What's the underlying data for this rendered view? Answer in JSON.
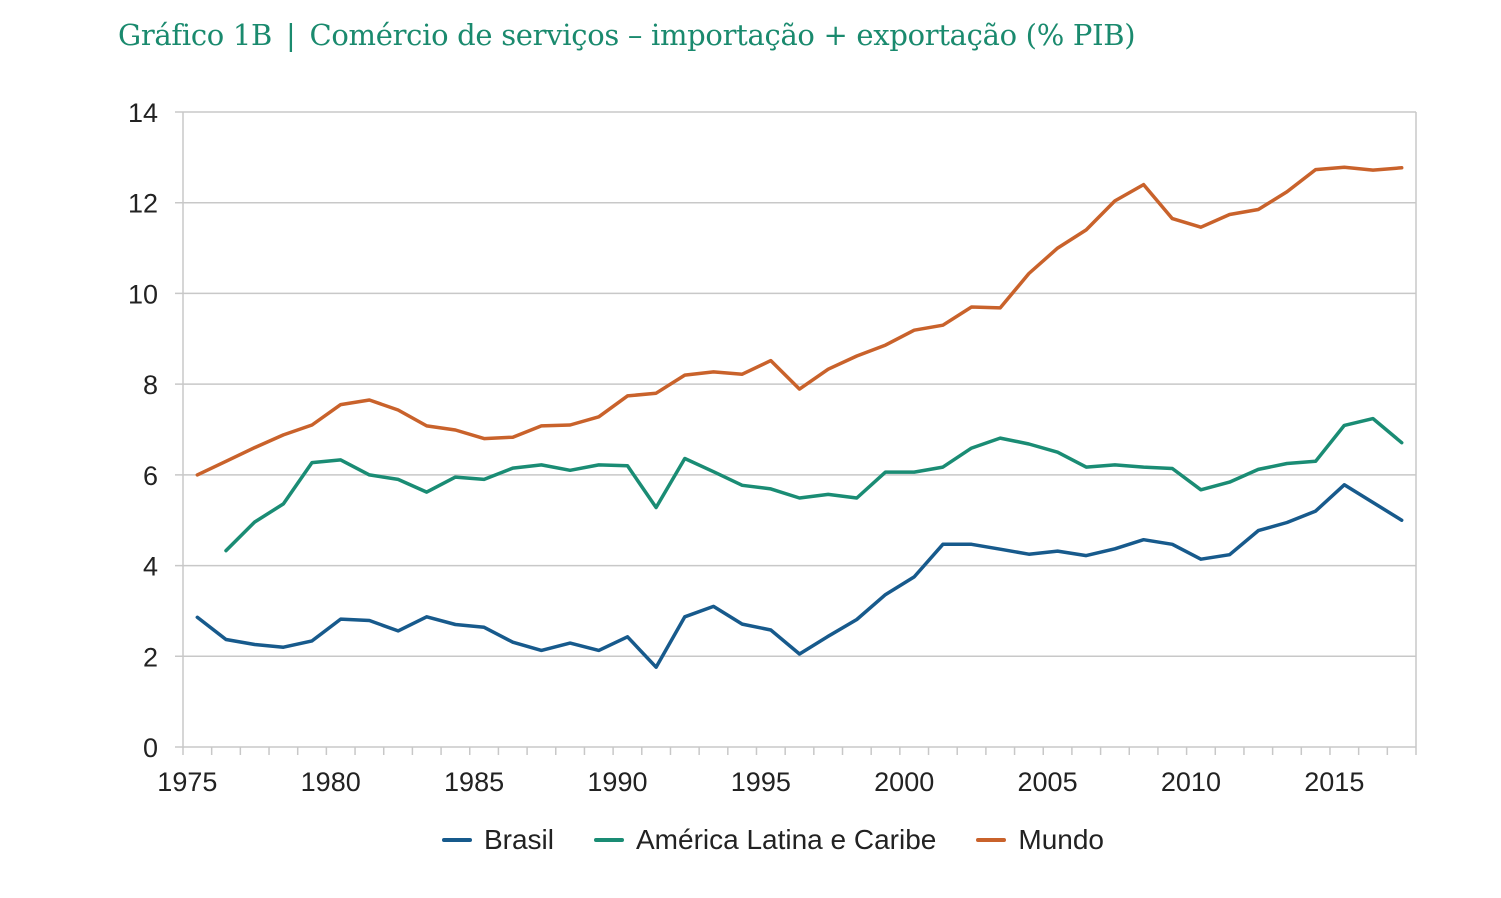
{
  "header": {
    "chart_id": "Gráfico 1B",
    "separator": "|",
    "subtitle": "Comércio de serviços – importação + exportação (% PIB)"
  },
  "colors": {
    "title": "#1a8a6e",
    "brasil": "#175a8c",
    "america_latina": "#1a8c74",
    "mundo": "#c9622b",
    "grid": "#c8c8c8"
  },
  "chart_data": {
    "type": "line",
    "title": "Gráfico 1B | Comércio de serviços – importação + exportação (% PIB)",
    "xlabel": "",
    "ylabel": "",
    "x": [
      1975,
      1976,
      1977,
      1978,
      1979,
      1980,
      1981,
      1982,
      1983,
      1984,
      1985,
      1986,
      1987,
      1988,
      1989,
      1990,
      1991,
      1992,
      1993,
      1994,
      1995,
      1996,
      1997,
      1998,
      1999,
      2000,
      2001,
      2002,
      2003,
      2004,
      2005,
      2006,
      2007,
      2008,
      2009,
      2010,
      2011,
      2012,
      2013,
      2014,
      2015,
      2016,
      2017
    ],
    "x_tick_labels": [
      "1975",
      "1980",
      "1985",
      "1990",
      "1995",
      "2000",
      "2005",
      "2010",
      "2015"
    ],
    "y_tick_labels": [
      "0",
      "2",
      "4",
      "6",
      "8",
      "10",
      "12",
      "14"
    ],
    "ylim": [
      0,
      14
    ],
    "y_ticks": [
      0,
      2,
      4,
      6,
      8,
      10,
      12,
      14
    ],
    "grid": "horizontal",
    "legend_position": "bottom",
    "series": [
      {
        "name": "Brasil",
        "color": "#175a8c",
        "values": [
          2.86,
          2.37,
          2.26,
          2.2,
          2.34,
          2.82,
          2.79,
          2.56,
          2.87,
          2.7,
          2.64,
          2.31,
          2.13,
          2.29,
          2.13,
          2.43,
          1.76,
          2.87,
          3.1,
          2.71,
          2.58,
          2.05,
          2.44,
          2.81,
          3.36,
          3.75,
          4.47,
          4.47,
          4.36,
          4.25,
          4.32,
          4.22,
          4.37,
          4.57,
          4.47,
          4.14,
          4.24,
          4.77,
          4.95,
          5.2,
          5.78,
          5.39,
          5.0
        ]
      },
      {
        "name": "América Latina e Caribe",
        "color": "#1a8c74",
        "values": [
          null,
          4.33,
          4.96,
          5.36,
          6.27,
          6.33,
          6.0,
          5.9,
          5.62,
          5.95,
          5.9,
          6.15,
          6.22,
          6.1,
          6.22,
          6.2,
          5.28,
          6.36,
          6.07,
          5.77,
          5.69,
          5.49,
          5.57,
          5.49,
          6.06,
          6.06,
          6.17,
          6.59,
          6.81,
          6.68,
          6.5,
          6.17,
          6.22,
          6.17,
          6.14,
          5.67,
          5.84,
          6.12,
          6.25,
          6.3,
          7.09,
          7.24,
          6.71
        ]
      },
      {
        "name": "Mundo",
        "color": "#c9622b",
        "values": [
          6.0,
          6.3,
          6.6,
          6.88,
          7.1,
          7.55,
          7.65,
          7.43,
          7.08,
          6.99,
          6.8,
          6.83,
          7.08,
          7.1,
          7.28,
          7.74,
          7.8,
          8.2,
          8.27,
          8.22,
          8.52,
          7.89,
          8.33,
          8.62,
          8.86,
          9.19,
          9.3,
          9.7,
          9.68,
          10.44,
          11.0,
          11.4,
          12.04,
          12.4,
          11.65,
          11.46,
          11.74,
          11.85,
          12.24,
          12.73,
          12.78,
          12.72,
          12.77
        ]
      }
    ]
  },
  "legend": {
    "items": [
      {
        "label": "Brasil",
        "color": "#175a8c"
      },
      {
        "label": "América Latina e Caribe",
        "color": "#1a8c74"
      },
      {
        "label": "Mundo",
        "color": "#c9622b"
      }
    ]
  }
}
